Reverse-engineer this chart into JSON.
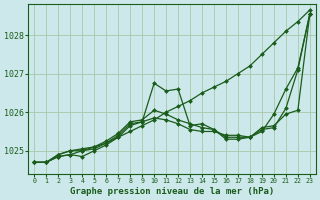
{
  "bg_color": "#cce8ea",
  "grid_color": "#a8c8a8",
  "line_color": "#1a5c1a",
  "marker_color": "#1a5c1a",
  "xlabel": "Graphe pression niveau de la mer (hPa)",
  "xlabel_color": "#1a5c1a",
  "tick_color": "#1a5c1a",
  "ylim": [
    1024.4,
    1028.8
  ],
  "yticks": [
    1025,
    1026,
    1027,
    1028
  ],
  "xlim": [
    -0.5,
    23.5
  ],
  "xticks": [
    0,
    1,
    2,
    3,
    4,
    5,
    6,
    7,
    8,
    9,
    10,
    11,
    12,
    13,
    14,
    15,
    16,
    17,
    18,
    19,
    20,
    21,
    22,
    23
  ],
  "series": [
    {
      "x": [
        0,
        1,
        2,
        3,
        4,
        5,
        6,
        7,
        8,
        9,
        10,
        11,
        12,
        13,
        14,
        15,
        16,
        17,
        18,
        19,
        20,
        21,
        22,
        23
      ],
      "y": [
        1024.7,
        1024.7,
        1024.9,
        1025.0,
        1025.05,
        1025.1,
        1025.2,
        1025.35,
        1025.5,
        1025.65,
        1025.8,
        1026.0,
        1026.15,
        1026.3,
        1026.5,
        1026.65,
        1026.8,
        1027.0,
        1027.2,
        1027.5,
        1027.8,
        1028.1,
        1028.35,
        1028.65
      ]
    },
    {
      "x": [
        0,
        1,
        2,
        3,
        4,
        5,
        6,
        7,
        8,
        9,
        10,
        11,
        12,
        13,
        14,
        15,
        16,
        17,
        18,
        19,
        20,
        21,
        22,
        23
      ],
      "y": [
        1024.7,
        1024.7,
        1024.85,
        1024.9,
        1025.0,
        1025.05,
        1025.2,
        1025.4,
        1025.7,
        1025.75,
        1026.75,
        1026.55,
        1026.6,
        1025.65,
        1025.7,
        1025.55,
        1025.35,
        1025.35,
        1025.35,
        1025.55,
        1025.6,
        1026.1,
        1027.1,
        1028.55
      ]
    },
    {
      "x": [
        0,
        1,
        2,
        3,
        4,
        5,
        6,
        7,
        8,
        9,
        10,
        11,
        12,
        13,
        14,
        15,
        16,
        17,
        18,
        19,
        20,
        21,
        22,
        23
      ],
      "y": [
        1024.7,
        1024.7,
        1024.85,
        1024.9,
        1024.85,
        1025.0,
        1025.15,
        1025.35,
        1025.65,
        1025.75,
        1025.85,
        1025.8,
        1025.7,
        1025.55,
        1025.5,
        1025.5,
        1025.4,
        1025.4,
        1025.35,
        1025.5,
        1025.95,
        1026.6,
        1027.15,
        1028.55
      ]
    },
    {
      "x": [
        0,
        1,
        2,
        3,
        4,
        5,
        6,
        7,
        8,
        9,
        10,
        11,
        12,
        13,
        14,
        15,
        16,
        17,
        18,
        19,
        20,
        21,
        22,
        23
      ],
      "y": [
        1024.7,
        1024.7,
        1024.9,
        1025.0,
        1025.0,
        1025.1,
        1025.25,
        1025.45,
        1025.75,
        1025.8,
        1026.05,
        1025.95,
        1025.8,
        1025.7,
        1025.6,
        1025.55,
        1025.3,
        1025.3,
        1025.35,
        1025.6,
        1025.65,
        1025.95,
        1026.05,
        1028.55
      ]
    }
  ]
}
